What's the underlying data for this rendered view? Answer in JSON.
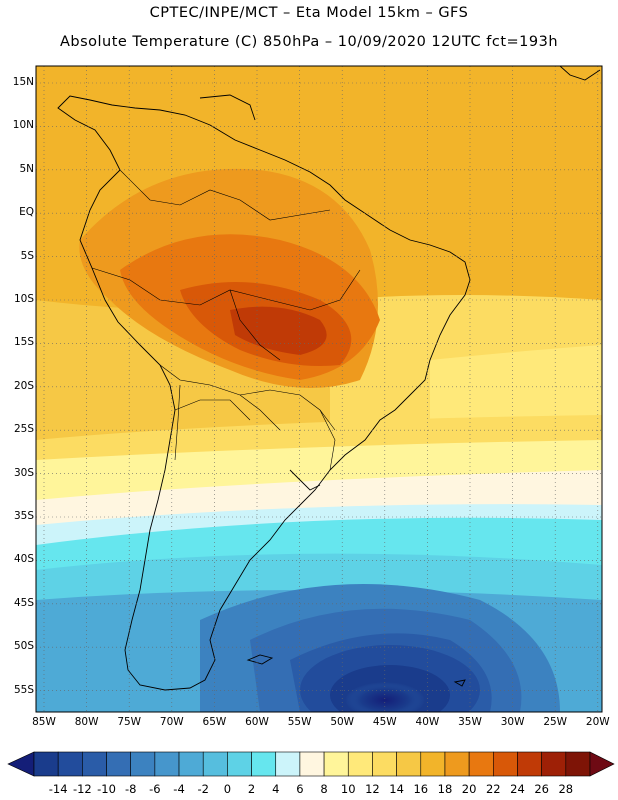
{
  "header": {
    "line1": "CPTEC/INPE/MCT –  Eta Model 15km – GFS",
    "line2": "Absolute Temperature (C) 850hPa – 10/09/2020 12UTC fct=193h"
  },
  "map": {
    "lat_labels": [
      "15N",
      "10N",
      "5N",
      "EQ",
      "5S",
      "10S",
      "15S",
      "20S",
      "25S",
      "30S",
      "35S",
      "40S",
      "45S",
      "50S",
      "55S"
    ],
    "lon_labels": [
      "85W",
      "80W",
      "75W",
      "70W",
      "65W",
      "60W",
      "55W",
      "50W",
      "45W",
      "40W",
      "35W",
      "30W",
      "25W",
      "20W"
    ],
    "gridlines": true
  },
  "colorbar": {
    "labels": [
      "-14",
      "-12",
      "-10",
      "-8",
      "-6",
      "-4",
      "-2",
      "0",
      "2",
      "4",
      "6",
      "8",
      "10",
      "12",
      "14",
      "16",
      "18",
      "20",
      "22",
      "24",
      "26",
      "28"
    ],
    "colors": [
      "#1a3c8c",
      "#224c9c",
      "#2a5ca8",
      "#346eb4",
      "#3c82c0",
      "#4696cc",
      "#4eaad6",
      "#56bede",
      "#5ed2e6",
      "#66e6ee",
      "#ccf4fa",
      "#fff6e0",
      "#fff59a",
      "#ffe97a",
      "#fcdc62",
      "#f6c845",
      "#f2b42a",
      "#ee9a1e",
      "#e87810",
      "#d85808",
      "#c03a06",
      "#9e2006",
      "#7e1406"
    ],
    "under_color": "#141e78",
    "over_color": "#6e0a14"
  }
}
